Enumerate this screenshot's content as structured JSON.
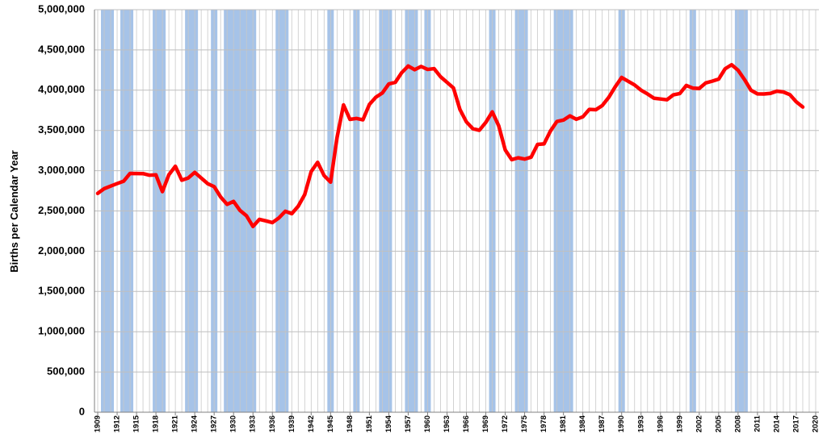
{
  "chart_data": {
    "type": "line",
    "y_label": "Births per Calendar Year",
    "xlim": [
      1908.5,
      2020.5
    ],
    "ylim": [
      0,
      5000000
    ],
    "yticks": [
      {
        "value": 0,
        "label": "0"
      },
      {
        "value": 500000,
        "label": "500,000"
      },
      {
        "value": 1000000,
        "label": "1,000,000"
      },
      {
        "value": 1500000,
        "label": "1,500,000"
      },
      {
        "value": 2000000,
        "label": "2,000,000"
      },
      {
        "value": 2500000,
        "label": "2,500,000"
      },
      {
        "value": 3000000,
        "label": "3,000,000"
      },
      {
        "value": 3500000,
        "label": "3,500,000"
      },
      {
        "value": 4000000,
        "label": "4,000,000"
      },
      {
        "value": 4500000,
        "label": "4,500,000"
      },
      {
        "value": 5000000,
        "label": "5,000,000"
      }
    ],
    "xticks": [
      1909,
      1912,
      1915,
      1918,
      1921,
      1924,
      1927,
      1930,
      1933,
      1936,
      1939,
      1942,
      1945,
      1948,
      1951,
      1954,
      1957,
      1960,
      1963,
      1966,
      1969,
      1972,
      1975,
      1978,
      1981,
      1984,
      1987,
      1990,
      1993,
      1996,
      1999,
      2002,
      2005,
      2008,
      2011,
      2014,
      2017,
      2020
    ],
    "grid": true,
    "recession_color": "#a6c3e8",
    "recessions": [
      [
        1909.5,
        1911.5
      ],
      [
        1912.5,
        1914.5
      ],
      [
        1917.5,
        1919.5
      ],
      [
        1922.5,
        1924.5
      ],
      [
        1926.5,
        1927.5
      ],
      [
        1928.5,
        1933.5
      ],
      [
        1936.5,
        1938.5
      ],
      [
        1944.5,
        1945.5
      ],
      [
        1948.5,
        1949.5
      ],
      [
        1952.5,
        1954.5
      ],
      [
        1956.5,
        1958.5
      ],
      [
        1959.5,
        1960.5
      ],
      [
        1969.5,
        1970.5
      ],
      [
        1973.5,
        1975.5
      ],
      [
        1979.5,
        1982.5
      ],
      [
        1989.5,
        1990.5
      ],
      [
        2000.5,
        2001.5
      ],
      [
        2007.5,
        2009.5
      ]
    ],
    "series": [
      {
        "name": "Births",
        "color": "#ff0000",
        "x": [
          1909,
          1910,
          1911,
          1912,
          1913,
          1914,
          1915,
          1916,
          1917,
          1918,
          1919,
          1920,
          1921,
          1922,
          1923,
          1924,
          1925,
          1926,
          1927,
          1928,
          1929,
          1930,
          1931,
          1932,
          1933,
          1934,
          1935,
          1936,
          1937,
          1938,
          1939,
          1940,
          1941,
          1942,
          1943,
          1944,
          1945,
          1946,
          1947,
          1948,
          1949,
          1950,
          1951,
          1952,
          1953,
          1954,
          1955,
          1956,
          1957,
          1958,
          1959,
          1960,
          1961,
          1962,
          1963,
          1964,
          1965,
          1966,
          1967,
          1968,
          1969,
          1970,
          1971,
          1972,
          1973,
          1974,
          1975,
          1976,
          1977,
          1978,
          1979,
          1980,
          1981,
          1982,
          1983,
          1984,
          1985,
          1986,
          1987,
          1988,
          1989,
          1990,
          1991,
          1992,
          1993,
          1994,
          1995,
          1996,
          1997,
          1998,
          1999,
          2000,
          2001,
          2002,
          2003,
          2004,
          2005,
          2006,
          2007,
          2008,
          2009,
          2010,
          2011,
          2012,
          2013,
          2014,
          2015,
          2016,
          2017,
          2018
        ],
        "values": [
          2718000,
          2777000,
          2809000,
          2840000,
          2869000,
          2966000,
          2965000,
          2964000,
          2944000,
          2948000,
          2740000,
          2950000,
          3055000,
          2882000,
          2910000,
          2979000,
          2909000,
          2839000,
          2802000,
          2674000,
          2582000,
          2618000,
          2506000,
          2440000,
          2307000,
          2396000,
          2377000,
          2355000,
          2413000,
          2496000,
          2466000,
          2559000,
          2703000,
          2989000,
          3104000,
          2939000,
          2858000,
          3411000,
          3817000,
          3637000,
          3649000,
          3632000,
          3823000,
          3913000,
          3965000,
          4078000,
          4097000,
          4218000,
          4300000,
          4255000,
          4295000,
          4258000,
          4268000,
          4167000,
          4098000,
          4027000,
          3760000,
          3606000,
          3521000,
          3502000,
          3600000,
          3731000,
          3556000,
          3258000,
          3137000,
          3160000,
          3144000,
          3168000,
          3327000,
          3333000,
          3494000,
          3612000,
          3629000,
          3681000,
          3639000,
          3669000,
          3761000,
          3757000,
          3809000,
          3910000,
          4041000,
          4158000,
          4111000,
          4065000,
          4000000,
          3953000,
          3900000,
          3891000,
          3881000,
          3942000,
          3959000,
          4059000,
          4026000,
          4022000,
          4090000,
          4112000,
          4138000,
          4266000,
          4316000,
          4248000,
          4131000,
          3999000,
          3954000,
          3953000,
          3960000,
          3988000,
          3978000,
          3945000,
          3855000,
          3791000
        ]
      }
    ]
  }
}
